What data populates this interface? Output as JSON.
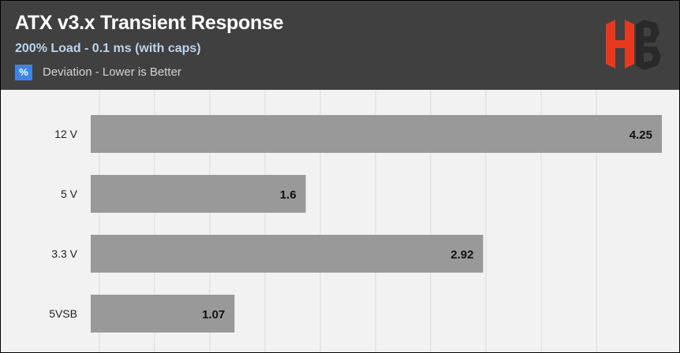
{
  "header": {
    "title": "ATX v3.x Transient Response",
    "subtitle": "200% Load - 0.1 ms (with caps)",
    "legend_symbol": "%",
    "legend_label": "Deviation - Lower is Better",
    "logo_letters": "HB"
  },
  "colors": {
    "header_bg": "#404040",
    "plot_bg": "#f2f2f2",
    "bar": "#999999",
    "legend_swatch": "#3f84e5",
    "subtitle": "#bcd3ec",
    "logo_red": "#e8391f",
    "logo_dark": "#2a2a2a"
  },
  "chart_data": {
    "type": "bar",
    "orientation": "horizontal",
    "categories": [
      "12 V",
      "5 V",
      "3.3 V",
      "5VSB"
    ],
    "series": [
      {
        "name": "Deviation - Lower is Better",
        "values": [
          4.25,
          1.6,
          2.92,
          1.07
        ]
      }
    ],
    "data_labels": [
      "4.25",
      "1.6",
      "2.92",
      "1.07"
    ],
    "title": "ATX v3.x Transient Response",
    "subtitle": "200% Load - 0.1 ms (with caps)",
    "xlabel": "",
    "ylabel": "",
    "xlim": [
      0,
      4.25
    ],
    "grid": true,
    "legend_position": "top-left"
  }
}
